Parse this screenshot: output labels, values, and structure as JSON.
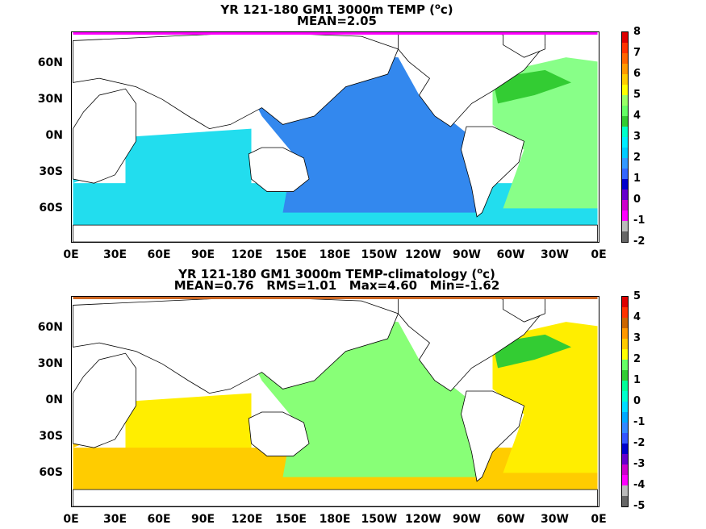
{
  "panels": [
    {
      "title": "YR 121-180 GM1 3000m TEMP (",
      "unit_sup": "o",
      "unit_tail": "c)",
      "subtitle": "MEAN=2.05",
      "lat_ticks": [
        "60N",
        "30N",
        "0N",
        "30S",
        "60S"
      ],
      "lon_ticks": [
        "0E",
        "30E",
        "60E",
        "90E",
        "120E",
        "150E",
        "180E",
        "150W",
        "120W",
        "90W",
        "60W",
        "30W",
        "0E"
      ],
      "colorbar": {
        "labels": [
          "8",
          "7",
          "6",
          "5",
          "4",
          "3",
          "2",
          "1",
          "0",
          "-1",
          "-2"
        ],
        "colors": [
          "#dd0000",
          "#ff3300",
          "#ff6600",
          "#ff9900",
          "#ffcc00",
          "#ffff00",
          "#99ff66",
          "#66ff66",
          "#33cc33",
          "#00ffcc",
          "#00eeff",
          "#00ccff",
          "#3399ff",
          "#3366ff",
          "#0000cc",
          "#6600cc",
          "#cc00cc",
          "#ff00ff",
          "#bbbbbb",
          "#666666"
        ]
      },
      "field_colors": {
        "pacific": "#3388ee",
        "indian": "#22ddee",
        "southern": "#22ddee",
        "atlantic": "#88ff88",
        "atl_green": "#33cc33",
        "ant": "#ff00ff"
      }
    },
    {
      "title": "YR 121-180 GM1 3000m TEMP-climatology (",
      "unit_sup": "o",
      "unit_tail": "c)",
      "subtitle": "MEAN=0.76   RMS=1.01   Max=4.60   Min=-1.62",
      "lat_ticks": [
        "60N",
        "30N",
        "0N",
        "30S",
        "60S"
      ],
      "lon_ticks": [
        "0E",
        "30E",
        "60E",
        "90E",
        "120E",
        "150E",
        "180E",
        "150W",
        "120W",
        "90W",
        "60W",
        "30W",
        "0E"
      ],
      "colorbar": {
        "labels": [
          "5",
          "4",
          "3",
          "2",
          "1",
          "0",
          "-1",
          "-2",
          "-3",
          "-4",
          "-5"
        ],
        "colors": [
          "#dd0000",
          "#ff3300",
          "#cc6600",
          "#ff9900",
          "#ffcc00",
          "#ffff00",
          "#66ff66",
          "#33cc33",
          "#00ff99",
          "#00ffcc",
          "#00ddff",
          "#00aaff",
          "#3388ff",
          "#3355ff",
          "#0000cc",
          "#6600cc",
          "#cc00cc",
          "#ff00ff",
          "#bbbbbb",
          "#666666"
        ]
      },
      "field_colors": {
        "pacific": "#88ff77",
        "indian": "#ffee00",
        "southern": "#ffcc00",
        "atlantic": "#ffee00",
        "atl_green": "#33cc33",
        "ant": "#cc6622"
      }
    }
  ]
}
